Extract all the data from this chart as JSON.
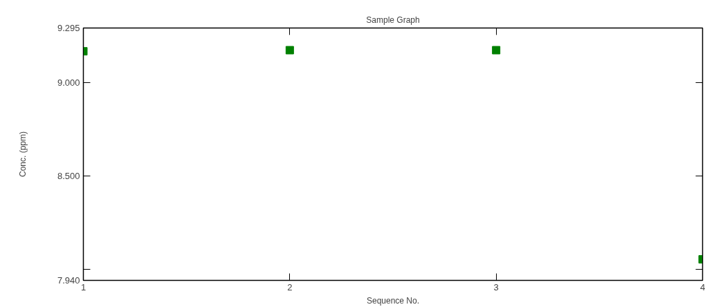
{
  "chart_data": {
    "type": "scatter",
    "title": "Sample Graph",
    "xlabel": "Sequence No.",
    "ylabel": "Conc. (ppm)",
    "x": [
      1,
      2,
      3,
      4
    ],
    "series": [
      {
        "color": "#008000",
        "values": [
          9.17,
          9.176,
          9.176,
          8.053
        ]
      }
    ],
    "marker": "square",
    "xlim": [
      1,
      4
    ],
    "xticks": [
      1,
      2,
      3,
      4
    ],
    "ylim": [
      7.94,
      9.295
    ],
    "yticks": [
      {
        "value": 7.94,
        "label": "7.940"
      },
      {
        "value": 8.0,
        "label": null
      },
      {
        "value": 8.5,
        "label": "8.500"
      },
      {
        "value": 9.0,
        "label": "9.000"
      },
      {
        "value": 9.295,
        "label": "9.295"
      }
    ],
    "grid": false
  }
}
